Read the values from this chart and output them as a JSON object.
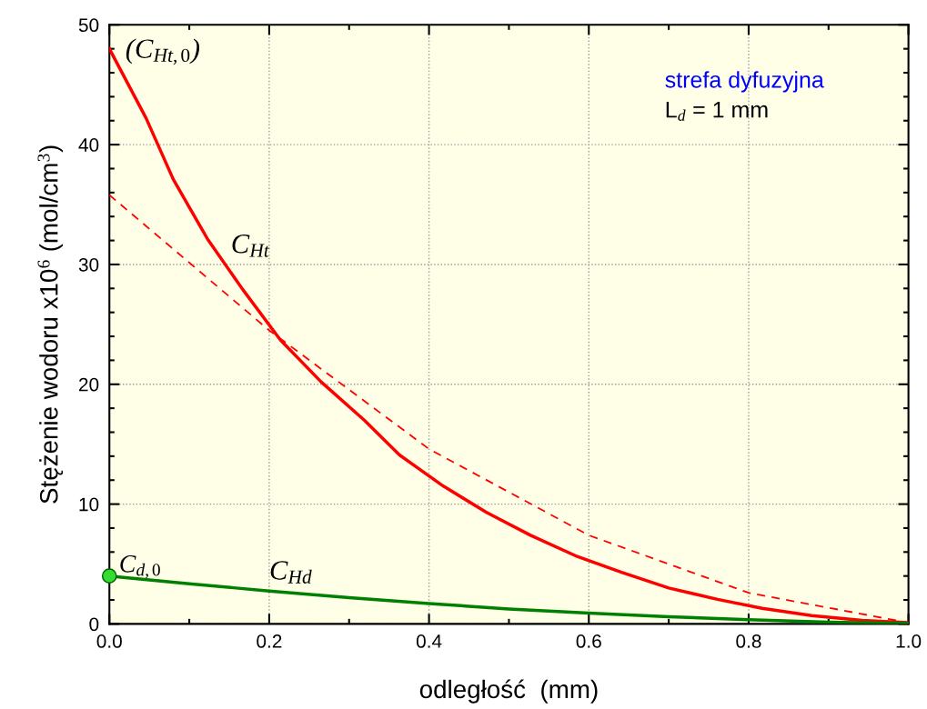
{
  "chart_data": {
    "type": "line",
    "xlabel": "odległość  (mm)",
    "ylabel": "Stężenie wodoru x10$^{6}$ (mol/cm$^{3}$)",
    "xlim": [
      0,
      1
    ],
    "ylim": [
      0,
      50
    ],
    "xticks": [
      {
        "value": 0,
        "label": "0.0"
      },
      0.2,
      0.4,
      0.6,
      0.8,
      {
        "value": 1,
        "label": "1.0"
      }
    ],
    "yticks": [
      0,
      10,
      20,
      30,
      40,
      50
    ],
    "grid": true,
    "series": [
      {
        "color": "#ff0000",
        "line_style": "solid",
        "x": [
          0,
          0.046,
          0.08,
          0.123,
          0.167,
          0.214,
          0.265,
          0.319,
          0.363,
          0.418,
          0.472,
          0.527,
          0.583,
          0.641,
          0.7,
          0.761,
          0.817,
          0.879,
          0.942,
          1.0
        ],
        "values": [
          48,
          42.2,
          37.1,
          32.1,
          27.9,
          23.7,
          20.2,
          17.0,
          14.1,
          11.5,
          9.3,
          7.4,
          5.7,
          4.3,
          3.0,
          2.05,
          1.3,
          0.7,
          0.3,
          0.1
        ]
      },
      {
        "color": "#ff0000",
        "line_style": "dashed",
        "x": [
          0,
          0.2,
          0.4,
          0.6,
          0.8,
          1.0
        ],
        "values": [
          35.8,
          24.5,
          14.6,
          7.4,
          2.6,
          0.1
        ]
      },
      {
        "color": "#008000",
        "line_style": "solid",
        "x": [
          0,
          0.1,
          0.2,
          0.3,
          0.4,
          0.5,
          0.6,
          0.7,
          0.8,
          0.9,
          1.0
        ],
        "values": [
          4.0,
          3.35,
          2.75,
          2.2,
          1.7,
          1.25,
          0.9,
          0.6,
          0.35,
          0.15,
          0.05
        ]
      },
      {
        "type": "scatter",
        "color": "#33dd33",
        "marker": "circle",
        "x": [
          0
        ],
        "values": [
          4.0
        ]
      }
    ],
    "annotations": [
      "(C$_{Ht,0}$)",
      "C$_{Ht}$",
      "C$_{d,0}$",
      "C$_{Hd}$",
      "strefa dyfuzyjna",
      "L$_{d}$ = 1 mm"
    ]
  }
}
